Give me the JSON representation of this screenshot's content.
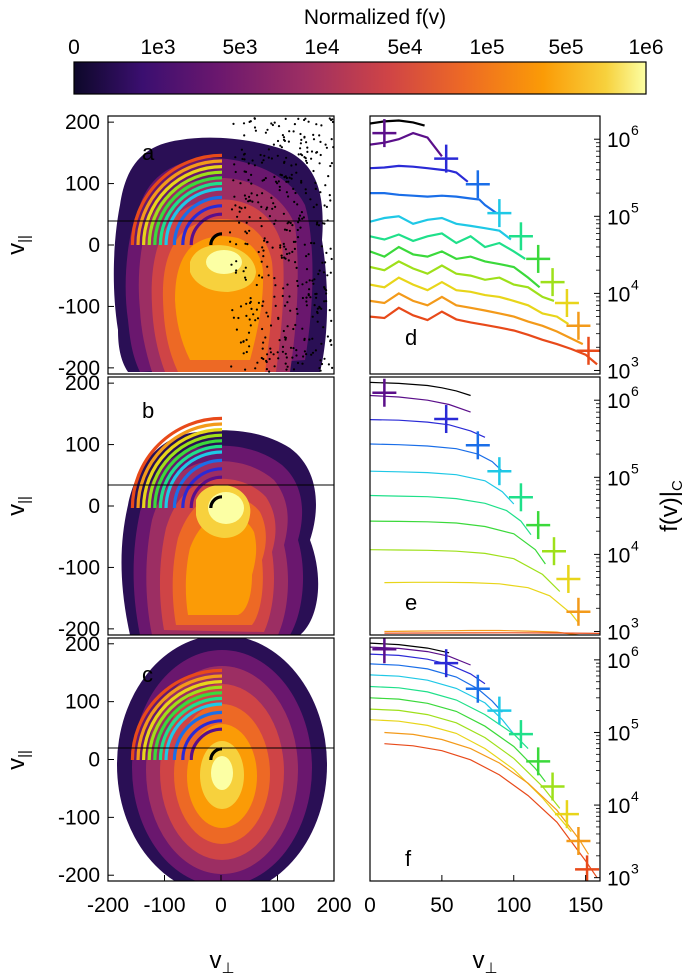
{
  "colorbar": {
    "title": "Normalized f(v)",
    "tick_labels": [
      "0",
      "1e3",
      "5e3",
      "1e4",
      "5e4",
      "1e5",
      "5e5",
      "1e6"
    ],
    "colormap": "inferno-like",
    "colors": [
      "#0d0829",
      "#3b0f70",
      "#6a176e",
      "#9c2e63",
      "#cf4446",
      "#ed6925",
      "#fb9b06",
      "#f7d13d",
      "#fcffa4"
    ]
  },
  "left_axes": {
    "ylabel": "v||",
    "xlabel": "v⊥",
    "y_ticks": [
      "200",
      "100",
      "0",
      "-100",
      "-200"
    ],
    "x_ticks": [
      "-200",
      "-100",
      "0",
      "100",
      "200"
    ],
    "xlim": [
      -200,
      200
    ],
    "ylim": [
      -210,
      210
    ],
    "horizontal_line_y": 37
  },
  "right_axes": {
    "ylabel": "f(v)|C",
    "xlabel": "v⊥",
    "x_ticks": [
      "0",
      "50",
      "100",
      "150"
    ],
    "xlim": [
      0,
      160
    ],
    "scale": "log",
    "y_ticks_exponents": [
      "6",
      "5",
      "4",
      "3"
    ]
  },
  "chart_data": [
    {
      "type": "heatmap",
      "panel": "a",
      "description_series": "measured distribution with scattered sample points",
      "arc_colors": [
        "#000000",
        "#5b0f8a",
        "#2a2ad6",
        "#1a6ee8",
        "#1fc8e6",
        "#1fe08a",
        "#3bd93b",
        "#9ee01a",
        "#e8d51a",
        "#f39a1a",
        "#e84a1a"
      ],
      "arc_radii": [
        20,
        55,
        70,
        85,
        100,
        110,
        120,
        130,
        140,
        150,
        160
      ]
    },
    {
      "type": "heatmap",
      "panel": "b",
      "description_series": "model distribution"
    },
    {
      "type": "heatmap",
      "panel": "c",
      "description_series": "model distribution (ellipsoidal)"
    },
    {
      "type": "line",
      "panel": "d",
      "yscale": "log",
      "xlim": [
        0,
        160
      ],
      "ylim": [
        900,
        2000000
      ],
      "series": [
        {
          "color": "#000000",
          "x": [
            0,
            10,
            20,
            30,
            38
          ],
          "y": [
            1600000,
            1700000,
            1750000,
            1650000,
            1500000
          ]
        },
        {
          "color": "#5b0f8a",
          "x": [
            0,
            10,
            20,
            30,
            40,
            50
          ],
          "y": [
            850000,
            900000,
            1000000,
            1200000,
            1050000,
            600000
          ]
        },
        {
          "color": "#2a2ad6",
          "x": [
            0,
            10,
            20,
            30,
            40,
            50,
            55,
            60,
            68
          ],
          "y": [
            420000,
            430000,
            450000,
            440000,
            420000,
            400000,
            390000,
            370000,
            280000
          ]
        },
        {
          "color": "#1a6ee8",
          "x": [
            0,
            10,
            20,
            30,
            40,
            50,
            60,
            70,
            76,
            80,
            88
          ],
          "y": [
            200000,
            200000,
            190000,
            185000,
            180000,
            185000,
            180000,
            170000,
            165000,
            140000,
            110000
          ]
        },
        {
          "color": "#1fc8e6",
          "x": [
            0,
            10,
            20,
            30,
            40,
            50,
            60,
            70,
            80,
            90,
            98
          ],
          "y": [
            85000,
            95000,
            100000,
            80000,
            90000,
            95000,
            80000,
            75000,
            70000,
            65000,
            50000
          ]
        },
        {
          "color": "#1fe08a",
          "x": [
            0,
            10,
            20,
            30,
            40,
            50,
            60,
            70,
            80,
            90,
            100,
            108
          ],
          "y": [
            55000,
            50000,
            58000,
            48000,
            55000,
            60000,
            45000,
            55000,
            40000,
            45000,
            35000,
            28000
          ]
        },
        {
          "color": "#3bd93b",
          "x": [
            0,
            10,
            20,
            30,
            40,
            50,
            60,
            70,
            80,
            90,
            100,
            110,
            118
          ],
          "y": [
            35000,
            30000,
            40000,
            32000,
            30000,
            35000,
            28000,
            30000,
            26000,
            24000,
            22000,
            16000,
            12000
          ]
        },
        {
          "color": "#9ee01a",
          "x": [
            0,
            10,
            20,
            30,
            40,
            50,
            60,
            70,
            80,
            90,
            100,
            110,
            120,
            128
          ],
          "y": [
            22000,
            20000,
            26000,
            21000,
            18000,
            23000,
            18000,
            17000,
            15000,
            16000,
            13000,
            12000,
            9000,
            8000
          ]
        },
        {
          "color": "#e8d51a",
          "x": [
            0,
            10,
            20,
            30,
            40,
            50,
            60,
            70,
            80,
            90,
            100,
            110,
            120,
            130,
            138
          ],
          "y": [
            13000,
            12000,
            16000,
            13000,
            11000,
            14000,
            11000,
            10500,
            9500,
            9000,
            8000,
            7000,
            5500,
            5000,
            4000
          ]
        },
        {
          "color": "#f39a1a",
          "x": [
            0,
            10,
            20,
            30,
            40,
            50,
            60,
            70,
            80,
            90,
            100,
            110,
            120,
            130,
            140,
            148
          ],
          "y": [
            8000,
            7500,
            10000,
            8000,
            7000,
            9000,
            7000,
            6500,
            6000,
            5500,
            5000,
            4300,
            3800,
            3200,
            2600,
            2200
          ]
        },
        {
          "color": "#e84a1a",
          "x": [
            0,
            10,
            20,
            30,
            40,
            50,
            60,
            70,
            80,
            90,
            100,
            110,
            120,
            130,
            140,
            150,
            158
          ],
          "y": [
            5000,
            4800,
            6500,
            5200,
            4500,
            5800,
            4600,
            4200,
            3900,
            3600,
            3300,
            2900,
            2500,
            2200,
            1900,
            1600,
            1200
          ]
        }
      ],
      "markers": [
        {
          "color": "#5b0f8a",
          "x": 10,
          "y": 1200000
        },
        {
          "color": "#2a2ad6",
          "x": 53,
          "y": 560000
        },
        {
          "color": "#1a6ee8",
          "x": 75,
          "y": 260000
        },
        {
          "color": "#1fc8e6",
          "x": 90,
          "y": 110000
        },
        {
          "color": "#1fe08a",
          "x": 105,
          "y": 55000
        },
        {
          "color": "#3bd93b",
          "x": 117,
          "y": 28000
        },
        {
          "color": "#9ee01a",
          "x": 127,
          "y": 14000
        },
        {
          "color": "#e8d51a",
          "x": 137,
          "y": 7500
        },
        {
          "color": "#f39a1a",
          "x": 145,
          "y": 3800
        },
        {
          "color": "#e84a1a",
          "x": 152,
          "y": 1800
        }
      ]
    },
    {
      "type": "line",
      "panel": "e",
      "yscale": "log",
      "xlim": [
        0,
        160
      ],
      "ylim": [
        900,
        2000000
      ],
      "series": [
        {
          "color": "#000000",
          "x": [
            0,
            20,
            40,
            50,
            60,
            70
          ],
          "y": [
            1700000,
            1650000,
            1550000,
            1450000,
            1320000,
            1150000
          ]
        },
        {
          "color": "#5b0f8a",
          "x": [
            0,
            20,
            40,
            55,
            70
          ],
          "y": [
            1150000,
            1100000,
            1000000,
            880000,
            700000
          ]
        },
        {
          "color": "#2a2ad6",
          "x": [
            0,
            20,
            40,
            55,
            70,
            80
          ],
          "y": [
            560000,
            550000,
            520000,
            480000,
            400000,
            330000
          ]
        },
        {
          "color": "#1a6ee8",
          "x": [
            0,
            20,
            40,
            60,
            75,
            85,
            92
          ],
          "y": [
            270000,
            265000,
            255000,
            235000,
            200000,
            160000,
            120000
          ]
        },
        {
          "color": "#1fc8e6",
          "x": [
            0,
            20,
            40,
            60,
            80,
            92,
            100
          ],
          "y": [
            120000,
            118000,
            115000,
            108000,
            90000,
            65000,
            45000
          ]
        },
        {
          "color": "#1fe08a",
          "x": [
            0,
            20,
            40,
            60,
            80,
            95,
            105,
            112
          ],
          "y": [
            58000,
            57000,
            56000,
            53000,
            46000,
            37000,
            27000,
            18000
          ]
        },
        {
          "color": "#3bd93b",
          "x": [
            0,
            20,
            40,
            60,
            80,
            100,
            115,
            122
          ],
          "y": [
            27000,
            26800,
            26500,
            25500,
            23000,
            18500,
            11500,
            7500
          ]
        },
        {
          "color": "#9ee01a",
          "x": [
            0,
            20,
            40,
            60,
            80,
            100,
            120,
            132
          ],
          "y": [
            11500,
            11400,
            11300,
            11000,
            10300,
            8800,
            5500,
            3300
          ]
        },
        {
          "color": "#e8d51a",
          "x": [
            10,
            30,
            50,
            70,
            90,
            110,
            125,
            140,
            145
          ],
          "y": [
            4300,
            4350,
            4350,
            4300,
            4150,
            3700,
            2900,
            1700,
            1300
          ]
        },
        {
          "color": "#f39a1a",
          "x": [
            10,
            30,
            50,
            70,
            90,
            110,
            130,
            145,
            155
          ],
          "y": [
            1000,
            1010,
            1020,
            1030,
            1030,
            1010,
            980,
            900,
            800
          ]
        },
        {
          "color": "#e84a1a",
          "x": [
            10,
            40,
            70,
            100,
            130,
            160
          ],
          "y": [
            950,
            955,
            958,
            960,
            955,
            945
          ]
        }
      ],
      "markers": [
        {
          "color": "#5b0f8a",
          "x": 10,
          "y": 1250000
        },
        {
          "color": "#2a2ad6",
          "x": 53,
          "y": 570000
        },
        {
          "color": "#1a6ee8",
          "x": 75,
          "y": 260000
        },
        {
          "color": "#1fc8e6",
          "x": 90,
          "y": 120000
        },
        {
          "color": "#1fe08a",
          "x": 105,
          "y": 55000
        },
        {
          "color": "#3bd93b",
          "x": 117,
          "y": 24000
        },
        {
          "color": "#9ee01a",
          "x": 128,
          "y": 11000
        },
        {
          "color": "#e8d51a",
          "x": 138,
          "y": 4800
        },
        {
          "color": "#f39a1a",
          "x": 145,
          "y": 1800
        }
      ]
    },
    {
      "type": "line",
      "panel": "f",
      "yscale": "log",
      "xlim": [
        0,
        160
      ],
      "ylim": [
        900,
        2000000
      ],
      "series": [
        {
          "color": "#000000",
          "x": [
            0,
            20,
            40,
            55
          ],
          "y": [
            1700000,
            1620000,
            1450000,
            1250000
          ]
        },
        {
          "color": "#5b0f8a",
          "x": [
            0,
            20,
            40,
            55,
            70
          ],
          "y": [
            1500000,
            1440000,
            1300000,
            1120000,
            850000
          ]
        },
        {
          "color": "#2a2ad6",
          "x": [
            0,
            20,
            40,
            55,
            70,
            80
          ],
          "y": [
            1200000,
            1150000,
            1020000,
            860000,
            640000,
            470000
          ]
        },
        {
          "color": "#1a6ee8",
          "x": [
            0,
            20,
            40,
            60,
            75,
            85,
            92
          ],
          "y": [
            880000,
            845000,
            750000,
            580000,
            400000,
            270000,
            190000
          ]
        },
        {
          "color": "#1fc8e6",
          "x": [
            0,
            20,
            40,
            60,
            80,
            92,
            100
          ],
          "y": [
            620000,
            595000,
            525000,
            405000,
            255000,
            150000,
            95000
          ]
        },
        {
          "color": "#1fe08a",
          "x": [
            0,
            20,
            40,
            60,
            80,
            100,
            110
          ],
          "y": [
            430000,
            412000,
            362000,
            280000,
            176000,
            95000,
            60000
          ]
        },
        {
          "color": "#3bd93b",
          "x": [
            0,
            20,
            40,
            60,
            80,
            100,
            115,
            122
          ],
          "y": [
            300000,
            288000,
            252000,
            195000,
            122000,
            64000,
            32000,
            21000
          ]
        },
        {
          "color": "#9ee01a",
          "x": [
            0,
            20,
            40,
            60,
            80,
            100,
            120,
            132
          ],
          "y": [
            210000,
            201000,
            176000,
            136000,
            85000,
            44000,
            18000,
            9000
          ]
        },
        {
          "color": "#e8d51a",
          "x": [
            0,
            20,
            40,
            60,
            80,
            100,
            120,
            140
          ],
          "y": [
            150000,
            143000,
            125000,
            97000,
            60000,
            31000,
            12500,
            4300
          ]
        },
        {
          "color": "#f39a1a",
          "x": [
            10,
            30,
            50,
            70,
            90,
            110,
            130,
            145,
            152
          ],
          "y": [
            100000,
            94000,
            80000,
            60000,
            38000,
            20000,
            8500,
            3500,
            2100
          ]
        },
        {
          "color": "#e84a1a",
          "x": [
            10,
            30,
            50,
            70,
            90,
            110,
            130,
            150,
            158
          ],
          "y": [
            70000,
            65500,
            56000,
            42000,
            26000,
            13500,
            5800,
            1700,
            1000
          ]
        }
      ],
      "markers": [
        {
          "color": "#5b0f8a",
          "x": 10,
          "y": 1400000
        },
        {
          "color": "#2a2ad6",
          "x": 53,
          "y": 900000
        },
        {
          "color": "#1a6ee8",
          "x": 75,
          "y": 400000
        },
        {
          "color": "#1fc8e6",
          "x": 90,
          "y": 200000
        },
        {
          "color": "#1fe08a",
          "x": 105,
          "y": 95000
        },
        {
          "color": "#3bd93b",
          "x": 117,
          "y": 40000
        },
        {
          "color": "#9ee01a",
          "x": 127,
          "y": 18000
        },
        {
          "color": "#e8d51a",
          "x": 137,
          "y": 7500
        },
        {
          "color": "#f39a1a",
          "x": 145,
          "y": 3200
        },
        {
          "color": "#e84a1a",
          "x": 151,
          "y": 1300
        }
      ]
    }
  ],
  "panel_labels": [
    "a",
    "b",
    "c",
    "d",
    "e",
    "f"
  ]
}
